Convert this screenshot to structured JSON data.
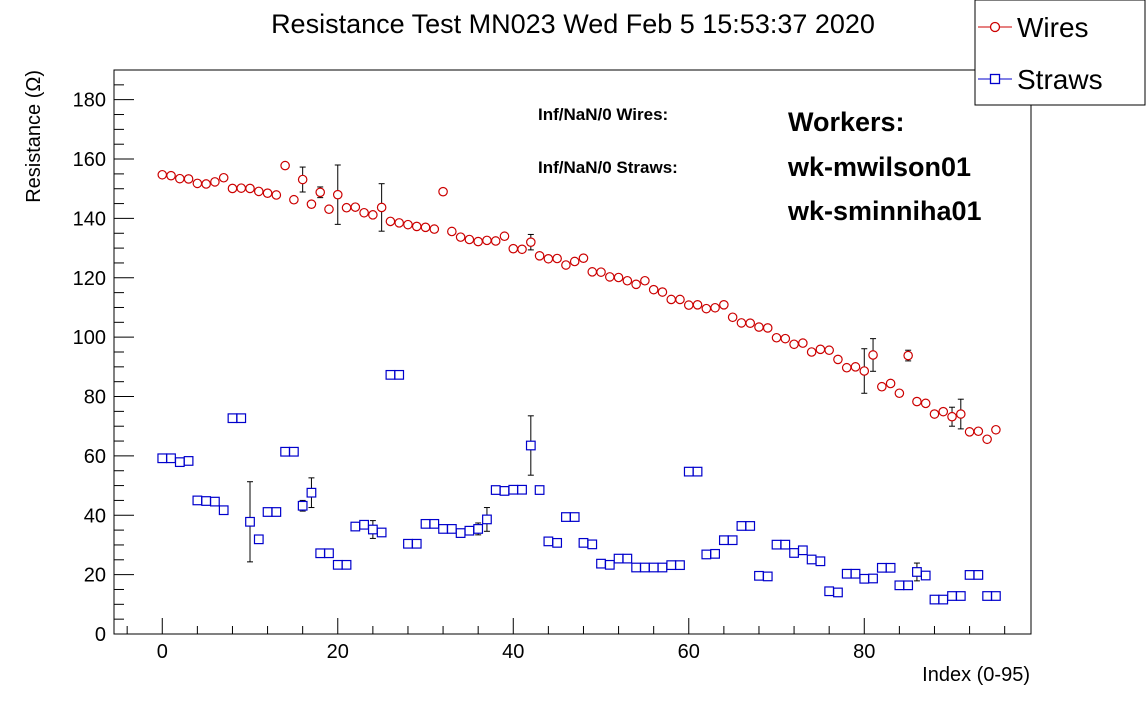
{
  "chart_data": {
    "type": "scatter",
    "title": "Resistance Test MN023 Wed Feb  5 15:53:37 2020",
    "xlabel": "Index (0-95)",
    "ylabel": "Resistance (Ω)",
    "xlim": [
      -5.5,
      99
    ],
    "ylim": [
      0,
      190
    ],
    "x_ticks": [
      0,
      20,
      40,
      60,
      80
    ],
    "y_ticks": [
      0,
      20,
      40,
      60,
      80,
      100,
      120,
      140,
      160,
      180
    ],
    "grid": false,
    "legend_position": "top-right",
    "annotations": {
      "inf_wires": "Inf/NaN/0 Wires:",
      "inf_straws": "Inf/NaN/0 Straws:",
      "workers_title": "Workers:",
      "workers": [
        "wk-mwilson01",
        "wk-sminniha01"
      ]
    },
    "series": [
      {
        "name": "Wires",
        "marker": "circle",
        "color": "#cc0000",
        "x": [
          0,
          1,
          2,
          3,
          4,
          5,
          6,
          7,
          8,
          9,
          10,
          11,
          12,
          13,
          14,
          15,
          16,
          17,
          18,
          19,
          20,
          21,
          22,
          23,
          24,
          25,
          26,
          27,
          28,
          29,
          30,
          31,
          32,
          33,
          34,
          35,
          36,
          37,
          38,
          39,
          40,
          41,
          42,
          43,
          44,
          45,
          46,
          47,
          48,
          49,
          50,
          51,
          52,
          53,
          54,
          55,
          56,
          57,
          58,
          59,
          60,
          61,
          62,
          63,
          64,
          65,
          66,
          67,
          68,
          69,
          70,
          71,
          72,
          73,
          74,
          75,
          76,
          77,
          78,
          79,
          80,
          81,
          82,
          83,
          84,
          85,
          86,
          87,
          88,
          89,
          90,
          91,
          92,
          93,
          94,
          95
        ],
        "y": [
          154.7,
          154.4,
          153.4,
          153.3,
          151.8,
          151.6,
          152.3,
          153.7,
          150.1,
          150.2,
          150.1,
          149.1,
          148.5,
          147.9,
          157.8,
          146.3,
          153.1,
          144.8,
          148.8,
          143.1,
          148.0,
          143.6,
          143.8,
          141.9,
          141.2,
          143.7,
          139.0,
          138.5,
          137.9,
          137.3,
          137.0,
          136.4,
          149.0,
          135.6,
          133.7,
          132.9,
          132.2,
          132.6,
          132.4,
          134.0,
          129.8,
          129.6,
          132.0,
          127.4,
          126.4,
          126.5,
          124.3,
          125.5,
          126.6,
          122.0,
          121.9,
          120.3,
          120.1,
          119.0,
          117.8,
          119.0,
          116.0,
          115.2,
          112.7,
          112.7,
          110.8,
          110.9,
          109.6,
          109.9,
          110.9,
          106.7,
          104.8,
          104.7,
          103.4,
          103.1,
          99.8,
          99.5,
          97.6,
          98.0,
          95.0,
          95.9,
          95.6,
          92.5,
          89.7,
          90.0,
          88.6,
          94.0,
          83.3,
          84.4,
          81.1,
          93.8,
          78.3,
          77.7,
          74.1,
          74.9,
          73.2,
          74.1,
          68.1,
          68.3,
          65.6,
          68.8
        ],
        "err": {
          "16": 4.2,
          "18": 1.8,
          "20": 10.0,
          "25": 8.0,
          "42": 2.6,
          "80": 7.5,
          "81": 5.5,
          "85": 1.8,
          "90": 3.2,
          "91": 5.0
        }
      },
      {
        "name": "Straws",
        "marker": "square",
        "color": "#0000cc",
        "x": [
          0,
          1,
          2,
          3,
          4,
          5,
          6,
          7,
          8,
          9,
          10,
          11,
          12,
          13,
          14,
          15,
          16,
          17,
          18,
          19,
          20,
          21,
          22,
          23,
          24,
          25,
          26,
          27,
          28,
          29,
          30,
          31,
          32,
          33,
          34,
          35,
          36,
          37,
          38,
          39,
          40,
          41,
          42,
          43,
          44,
          45,
          46,
          47,
          48,
          49,
          50,
          51,
          52,
          53,
          54,
          55,
          56,
          57,
          58,
          59,
          60,
          61,
          62,
          63,
          64,
          65,
          66,
          67,
          68,
          69,
          70,
          71,
          72,
          73,
          74,
          75,
          76,
          77,
          78,
          79,
          80,
          81,
          82,
          83,
          84,
          85,
          86,
          87,
          88,
          89,
          90,
          91,
          92,
          93,
          94,
          95
        ],
        "y": [
          59.2,
          59.2,
          57.9,
          58.3,
          45.0,
          44.8,
          44.6,
          41.7,
          72.7,
          72.7,
          37.8,
          31.9,
          41.1,
          41.1,
          61.4,
          61.4,
          43.2,
          47.6,
          27.2,
          27.2,
          23.3,
          23.3,
          36.2,
          36.8,
          35.2,
          34.2,
          87.3,
          87.3,
          30.4,
          30.4,
          37.1,
          37.1,
          35.4,
          35.4,
          34.0,
          34.8,
          35.4,
          38.6,
          48.5,
          48.2,
          48.6,
          48.6,
          63.5,
          48.5,
          31.2,
          30.7,
          39.4,
          39.4,
          30.7,
          30.2,
          23.7,
          23.3,
          25.4,
          25.4,
          22.4,
          22.4,
          22.4,
          22.4,
          23.2,
          23.2,
          54.7,
          54.7,
          26.8,
          27.0,
          31.6,
          31.6,
          36.4,
          36.4,
          19.6,
          19.4,
          30.1,
          30.1,
          27.3,
          28.2,
          25.1,
          24.5,
          14.4,
          14.0,
          20.3,
          20.3,
          18.6,
          18.7,
          22.3,
          22.3,
          16.4,
          16.4,
          20.9,
          19.7,
          11.6,
          11.6,
          12.8,
          12.8,
          19.9,
          19.9,
          12.8,
          12.8
        ],
        "err": {
          "10": 13.5,
          "16": 1.8,
          "17": 5.0,
          "24": 3.0,
          "36": 2.0,
          "37": 4.0,
          "42": 10.0,
          "86": 3.0
        }
      }
    ]
  }
}
